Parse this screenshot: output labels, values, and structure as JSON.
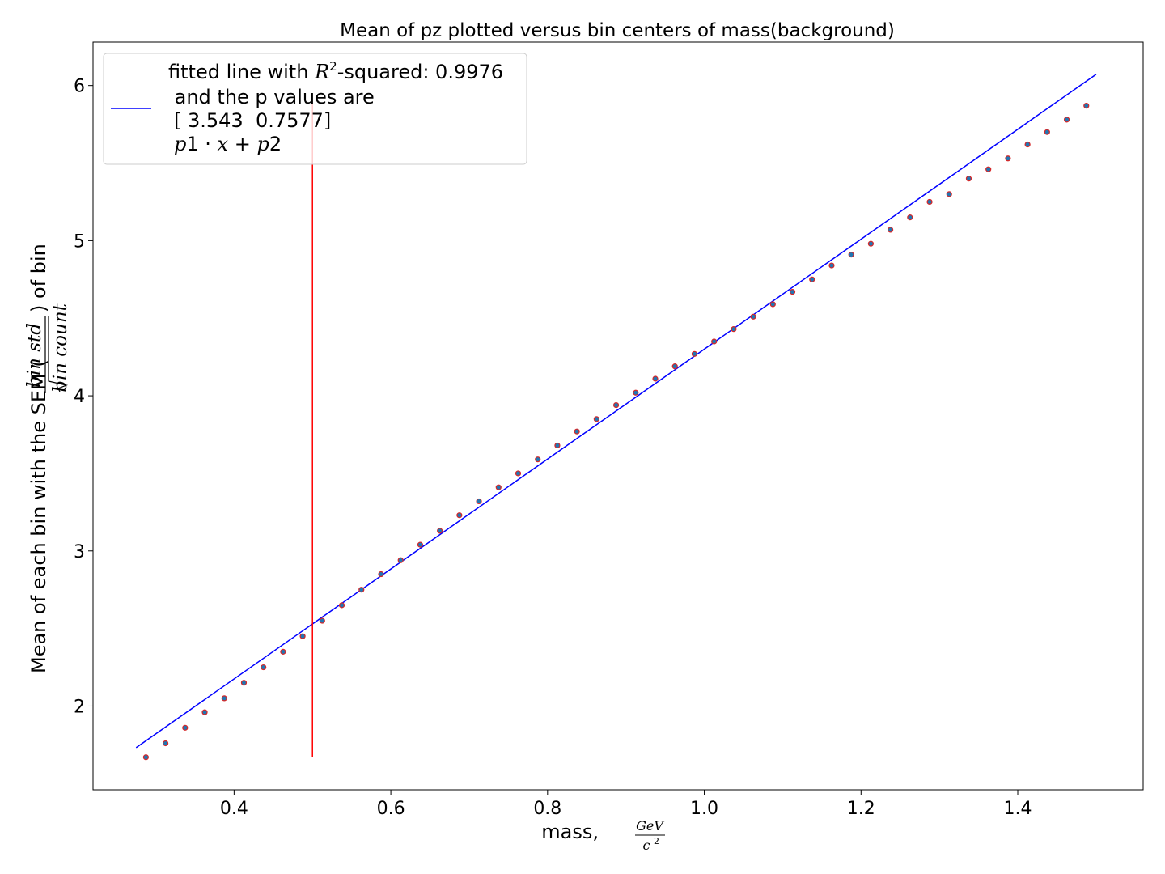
{
  "chart_data": {
    "type": "scatter",
    "title": "Mean of pz plotted versus bin centers of mass(background)",
    "xlabel": "mass, GeV/c²",
    "xlabel_prefix": "mass,",
    "xlabel_unit_num": "GeV",
    "xlabel_unit_den": "c",
    "xlabel_unit_den_exp": "2",
    "ylabel": "Mean of each bin with the SEM (bin std / √bin count) of bin",
    "ylabel_prefix": "Mean of each bin with the SEM (",
    "ylabel_frac_num": "bin std",
    "ylabel_frac_den": "bin count",
    "ylabel_suffix": ") of bin",
    "xlim": [
      0.22,
      1.56
    ],
    "ylim": [
      1.46,
      6.28
    ],
    "xticks": [
      0.4,
      0.6,
      0.8,
      1.0,
      1.2,
      1.4
    ],
    "xtick_labels": [
      "0.4",
      "0.6",
      "0.8",
      "1.0",
      "1.2",
      "1.4"
    ],
    "yticks": [
      2,
      3,
      4,
      5,
      6
    ],
    "ytick_labels": [
      "2",
      "3",
      "4",
      "5",
      "6"
    ],
    "grid": false,
    "legend": {
      "placement": "top-left",
      "lines": [
        "fitted line with R²-squared: 0.9976",
        "and the p values are",
        "[ 3.543  0.7577]",
        "p1·x+p2"
      ],
      "line1_prefix": "fitted line with ",
      "line1_R": "R",
      "line1_sup": "2",
      "line1_suffix": "-squared: 0.9976",
      "line2": " and the p values are",
      "line3": "[ 3.543  0.7577]",
      "line4_p1": "p",
      "line4_p1n": "1",
      "line4_dot": " · ",
      "line4_x": "x",
      "line4_plus": " + ",
      "line4_p2": "p",
      "line4_p2n": "2"
    },
    "fit_line": {
      "slope": 3.543,
      "intercept": 0.7577,
      "x_range": [
        0.275,
        1.5
      ],
      "color": "#0000ff"
    },
    "vertical_line": {
      "x": 0.5,
      "y_range": [
        1.67,
        5.9
      ],
      "color": "#ff0000"
    },
    "marker_fill": "#1f77b4",
    "marker_edge": "#d62728",
    "series": [
      {
        "x": [
          0.2875,
          0.3125,
          0.3375,
          0.3625,
          0.3875,
          0.4125,
          0.4375,
          0.4625,
          0.4875,
          0.5125,
          0.5375,
          0.5625,
          0.5875,
          0.6125,
          0.6375,
          0.6625,
          0.6875,
          0.7125,
          0.7375,
          0.7625,
          0.7875,
          0.8125,
          0.8375,
          0.8625,
          0.8875,
          0.9125,
          0.9375,
          0.9625,
          0.9875,
          1.0125,
          1.0375,
          1.0625,
          1.0875,
          1.1125,
          1.1375,
          1.1625,
          1.1875,
          1.2125,
          1.2375,
          1.2625,
          1.2875,
          1.3125,
          1.3375,
          1.3625,
          1.3875,
          1.4125,
          1.4375,
          1.4625,
          1.4875
        ],
        "y": [
          1.67,
          1.76,
          1.86,
          1.96,
          2.05,
          2.15,
          2.25,
          2.35,
          2.45,
          2.55,
          2.65,
          2.75,
          2.85,
          2.94,
          3.04,
          3.13,
          3.23,
          3.32,
          3.41,
          3.5,
          3.59,
          3.68,
          3.77,
          3.85,
          3.94,
          4.02,
          4.11,
          4.19,
          4.27,
          4.35,
          4.43,
          4.51,
          4.59,
          4.67,
          4.75,
          4.84,
          4.91,
          4.98,
          5.07,
          5.15,
          5.25,
          5.3,
          5.4,
          5.46,
          5.53,
          5.62,
          5.7,
          5.78,
          5.87
        ]
      }
    ]
  }
}
